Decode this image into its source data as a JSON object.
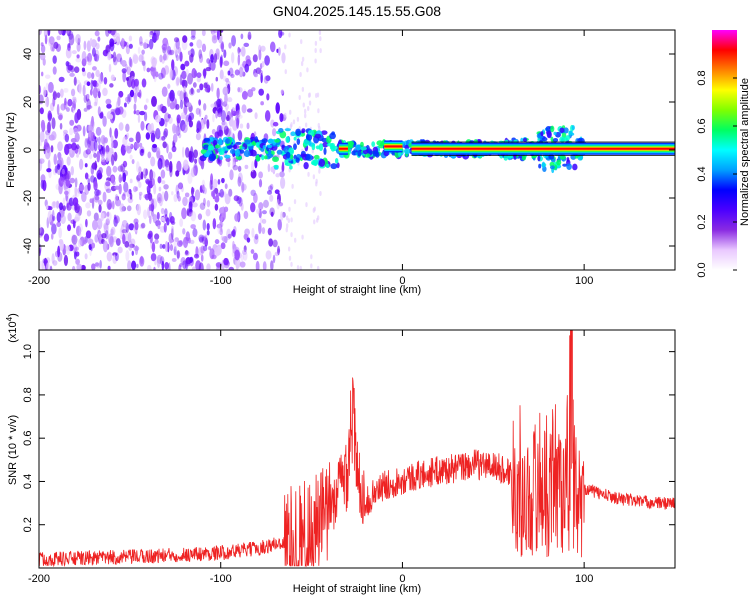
{
  "title": "GN04.2025.145.15.55.G08",
  "chart_data": [
    {
      "type": "heatmap",
      "xlabel": "Height of straight line (km)",
      "ylabel": "Frequency (Hz)",
      "xlim": [
        -200,
        150
      ],
      "ylim": [
        -50,
        50
      ],
      "x_ticks": [
        -200,
        -100,
        0,
        100
      ],
      "y_ticks": [
        -40,
        -20,
        0,
        20,
        40
      ],
      "colorbar": {
        "label": "Normalized spectral amplitude",
        "range": [
          0,
          1
        ],
        "ticks": [
          0.0,
          0.2,
          0.4,
          0.6,
          0.8
        ],
        "tick_labels": [
          "0.0",
          "0.2",
          "0.4",
          "0.6",
          "0.8"
        ],
        "colormap": [
          "#ffffff",
          "#e9c8ff",
          "#8a2be2",
          "#4b00ff",
          "#0000ff",
          "#00a0ff",
          "#00ffff",
          "#00ff60",
          "#80ff00",
          "#ffff00",
          "#ff8000",
          "#ff0000",
          "#ff00ff"
        ]
      },
      "features": {
        "noise_region_x": [
          -200,
          -65
        ],
        "signal_track_x": [
          -110,
          150
        ],
        "signal_track_frequency_hz": 0.5,
        "saturated_segments_x": [
          [
            -35,
            -30
          ],
          [
            -10,
            0
          ],
          [
            5,
            150
          ]
        ]
      }
    },
    {
      "type": "line",
      "xlabel": "Height of straight line (km)",
      "ylabel": "SNR (10 * v/v)",
      "y_scale_note": "(x10⁴)",
      "y_scale_base": "(x10",
      "y_scale_exp": "4",
      "y_scale_close": ")",
      "xlim": [
        -200,
        150
      ],
      "ylim": [
        0,
        1.1
      ],
      "x_ticks": [
        -200,
        -100,
        0,
        100
      ],
      "y_ticks": [
        0.2,
        0.4,
        0.6,
        0.8,
        1.0
      ],
      "color": "#ee2222",
      "series": [
        {
          "x": [
            -200,
            -150,
            -100,
            -80,
            -65,
            -50,
            -40,
            -35,
            -30,
            -28,
            -25,
            -20,
            -15,
            -10,
            0,
            10,
            20,
            30,
            40,
            50,
            60,
            65,
            70,
            75,
            80,
            85,
            90,
            93,
            95,
            100,
            110,
            120,
            130,
            140,
            150
          ],
          "values": [
            0.04,
            0.05,
            0.07,
            0.09,
            0.12,
            0.18,
            0.25,
            0.35,
            0.45,
            0.75,
            0.4,
            0.3,
            0.35,
            0.38,
            0.41,
            0.43,
            0.45,
            0.46,
            0.48,
            0.47,
            0.44,
            0.4,
            0.42,
            0.55,
            0.5,
            0.6,
            0.45,
            1.1,
            0.45,
            0.37,
            0.34,
            0.32,
            0.31,
            0.3,
            0.3
          ]
        }
      ]
    }
  ]
}
